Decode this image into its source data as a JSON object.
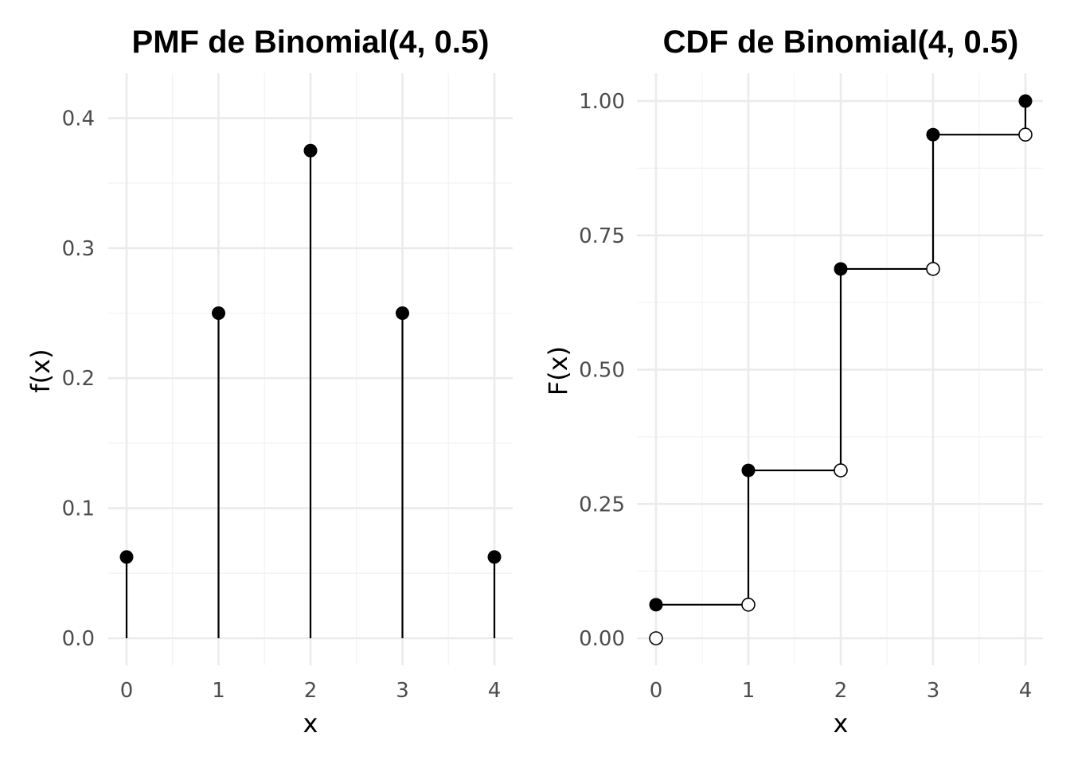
{
  "chart_data": [
    {
      "type": "stem",
      "title": "PMF de Binomial(4, 0.5)",
      "xlabel": "x",
      "ylabel": "f(x)",
      "x": [
        0,
        1,
        2,
        3,
        4
      ],
      "y": [
        0.0625,
        0.25,
        0.375,
        0.25,
        0.0625
      ],
      "xticks": [
        "0",
        "1",
        "2",
        "3",
        "4"
      ],
      "yticks": [
        "0.0",
        "0.1",
        "0.2",
        "0.3",
        "0.4"
      ],
      "xlim": [
        -0.1,
        4.2
      ],
      "ylim": [
        -0.018,
        0.402
      ],
      "grid": true,
      "point_color": "#000000"
    },
    {
      "type": "step",
      "title": "CDF de Binomial(4, 0.5)",
      "xlabel": "x",
      "ylabel": "F(x)",
      "x": [
        0,
        1,
        2,
        3,
        4
      ],
      "y_closed": [
        0.0625,
        0.3125,
        0.6875,
        0.9375,
        1.0
      ],
      "y_open": [
        0.0,
        0.0625,
        0.3125,
        0.6875,
        0.9375
      ],
      "xticks": [
        "0",
        "1",
        "2",
        "3",
        "4"
      ],
      "yticks": [
        "0.00",
        "0.25",
        "0.50",
        "0.75",
        "1.00"
      ],
      "xlim": [
        -0.1,
        4.2
      ],
      "ylim": [
        -0.04,
        1.05
      ],
      "grid": true,
      "point_color": "#000000"
    }
  ]
}
